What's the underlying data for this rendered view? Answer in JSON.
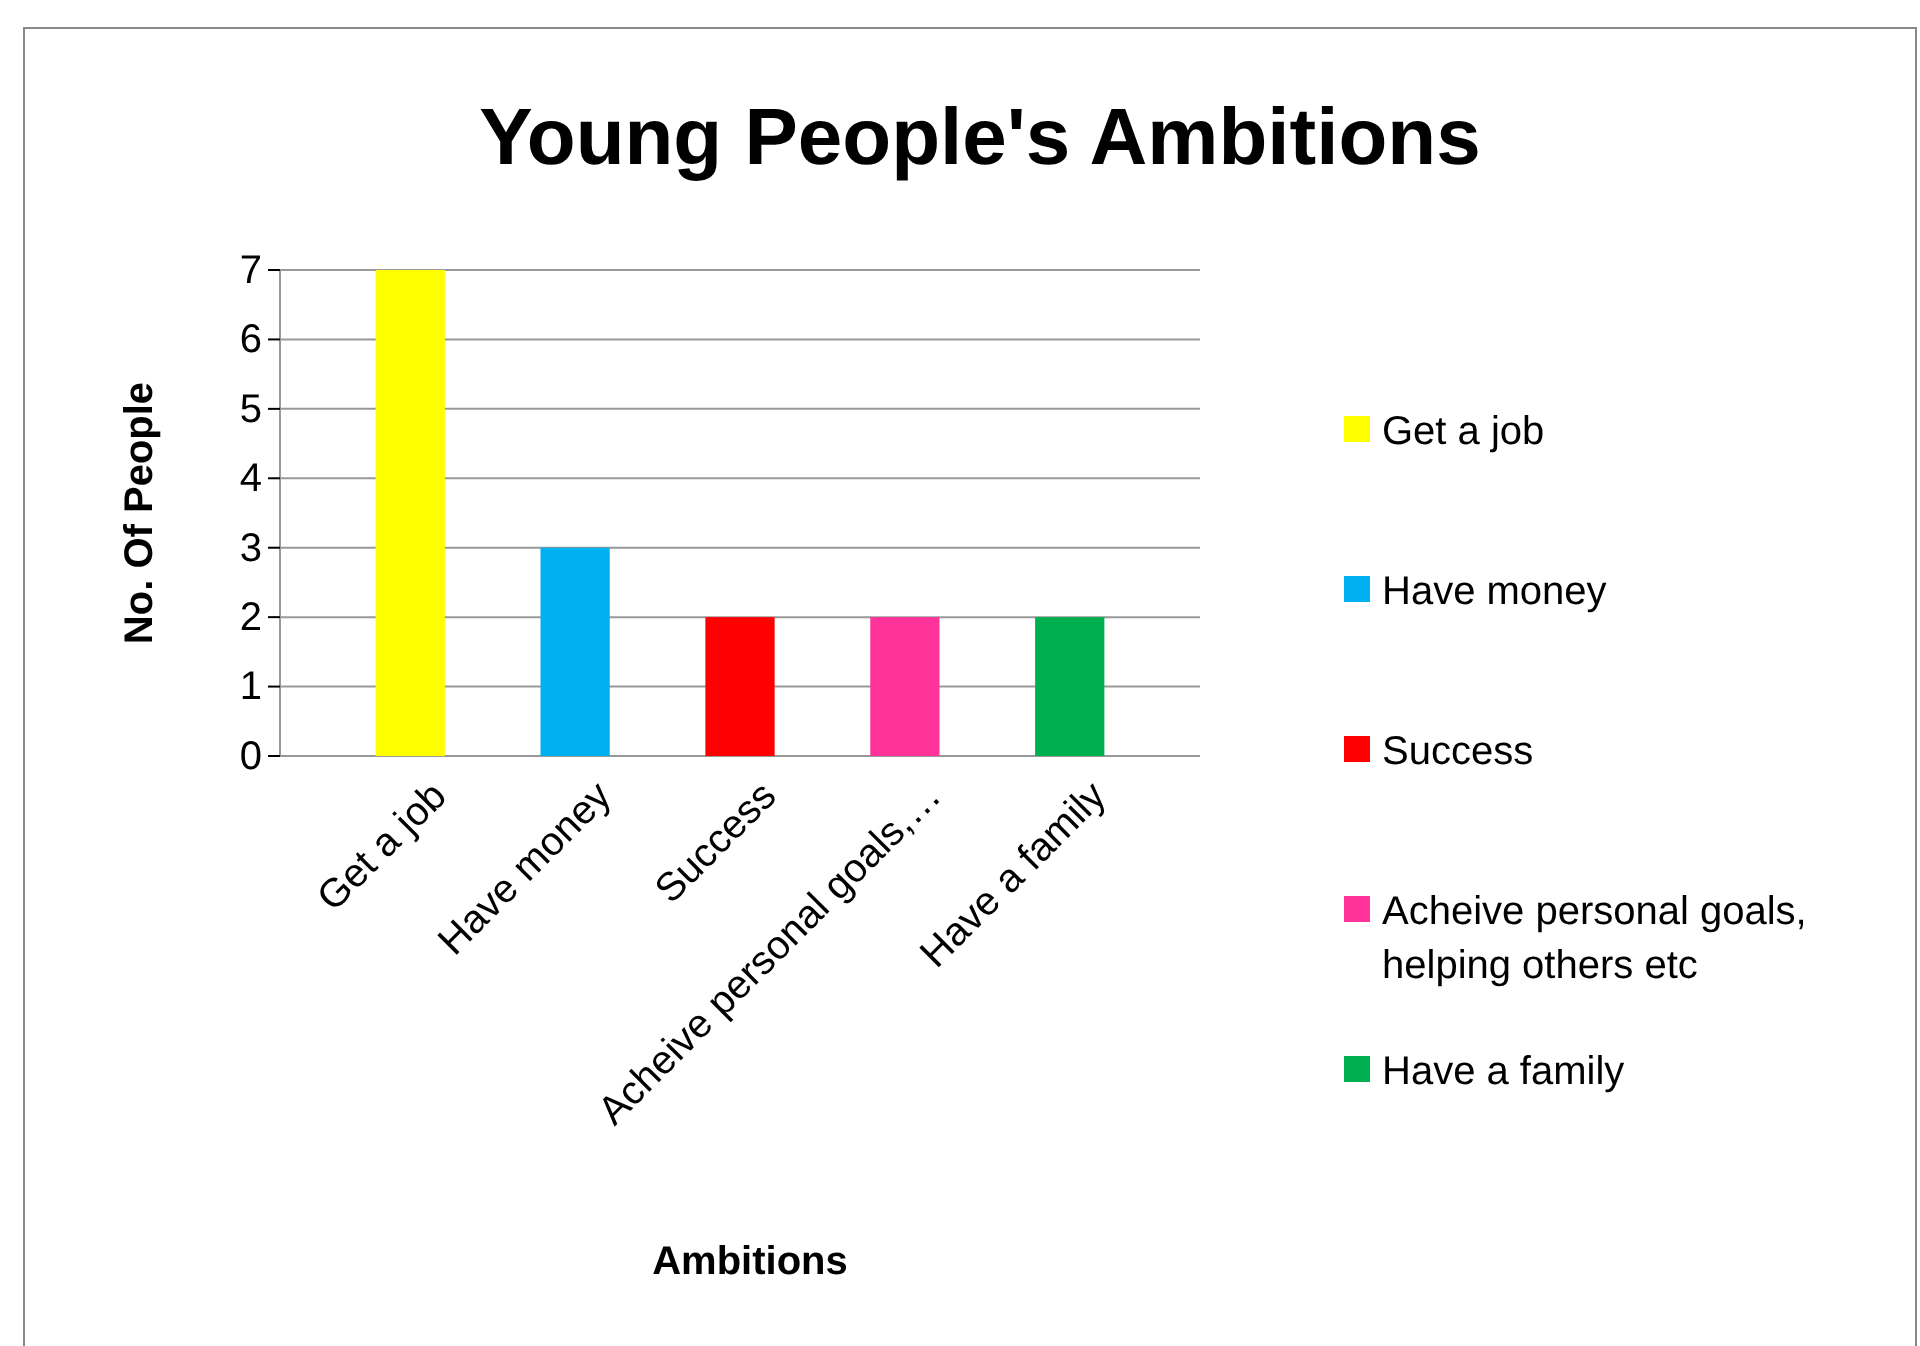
{
  "chart_data": {
    "type": "bar",
    "title": "Young People's Ambitions",
    "xlabel": "Ambitions",
    "ylabel": "No. Of People",
    "categories": [
      "Get a job",
      "Have money",
      "Success",
      "Acheive personal goals,…",
      "Have a family"
    ],
    "series": [
      {
        "name": "Get a job",
        "color": "#ffff00",
        "values": [
          7,
          null,
          null,
          null,
          null
        ]
      },
      {
        "name": "Have money",
        "color": "#00b0f0",
        "values": [
          null,
          3,
          null,
          null,
          null
        ]
      },
      {
        "name": "Success",
        "color": "#ff0000",
        "values": [
          null,
          null,
          2,
          null,
          null
        ]
      },
      {
        "name": "Acheive personal goals, helping others etc",
        "color": "#ff3399",
        "values": [
          null,
          null,
          null,
          2,
          null
        ]
      },
      {
        "name": "Have a family",
        "color": "#00b050",
        "values": [
          null,
          null,
          null,
          null,
          2
        ]
      }
    ],
    "stacked": true,
    "ylim": [
      0,
      7
    ],
    "yticks": [
      0,
      1,
      2,
      3,
      4,
      5,
      6,
      7
    ],
    "grid": "y",
    "legend": "right"
  }
}
